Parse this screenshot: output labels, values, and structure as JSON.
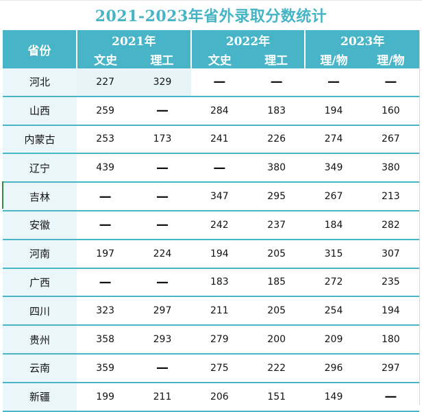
{
  "title": "2021-2023年省外录取分数统计",
  "header": {
    "province_label": "省份",
    "years": [
      "2021年",
      "2022年",
      "2023年"
    ],
    "subjects": [
      "文史",
      "理工",
      "文史",
      "理工",
      "理/物",
      "理/物"
    ]
  },
  "rows": [
    {
      "province": "河北",
      "values": [
        "227",
        "329",
        "—",
        "—",
        "—",
        "—"
      ]
    },
    {
      "province": "山西",
      "values": [
        "259",
        "—",
        "284",
        "183",
        "194",
        "160"
      ]
    },
    {
      "province": "内蒙古",
      "values": [
        "253",
        "173",
        "241",
        "226",
        "274",
        "267"
      ]
    },
    {
      "province": "辽宁",
      "values": [
        "439",
        "—",
        "—",
        "380",
        "349",
        "380"
      ]
    },
    {
      "province": "吉林",
      "values": [
        "—",
        "—",
        "347",
        "295",
        "267",
        "213"
      ]
    },
    {
      "province": "安徽",
      "values": [
        "—",
        "—",
        "242",
        "237",
        "184",
        "282"
      ]
    },
    {
      "province": "河南",
      "values": [
        "197",
        "224",
        "194",
        "205",
        "315",
        "307"
      ]
    },
    {
      "province": "广西",
      "values": [
        "—",
        "—",
        "183",
        "185",
        "272",
        "235"
      ]
    },
    {
      "province": "四川",
      "values": [
        "323",
        "297",
        "211",
        "205",
        "254",
        "194"
      ]
    },
    {
      "province": "贵州",
      "values": [
        "358",
        "293",
        "279",
        "200",
        "209",
        "180"
      ]
    },
    {
      "province": "云南",
      "values": [
        "359",
        "—",
        "275",
        "222",
        "296",
        "297"
      ]
    },
    {
      "province": "新疆",
      "values": [
        "199",
        "211",
        "206",
        "151",
        "149",
        "—"
      ]
    }
  ],
  "colors": {
    "header_bg": "#47b4c7",
    "title": "#45b4c4",
    "row_tint": "#e8f5f8"
  }
}
